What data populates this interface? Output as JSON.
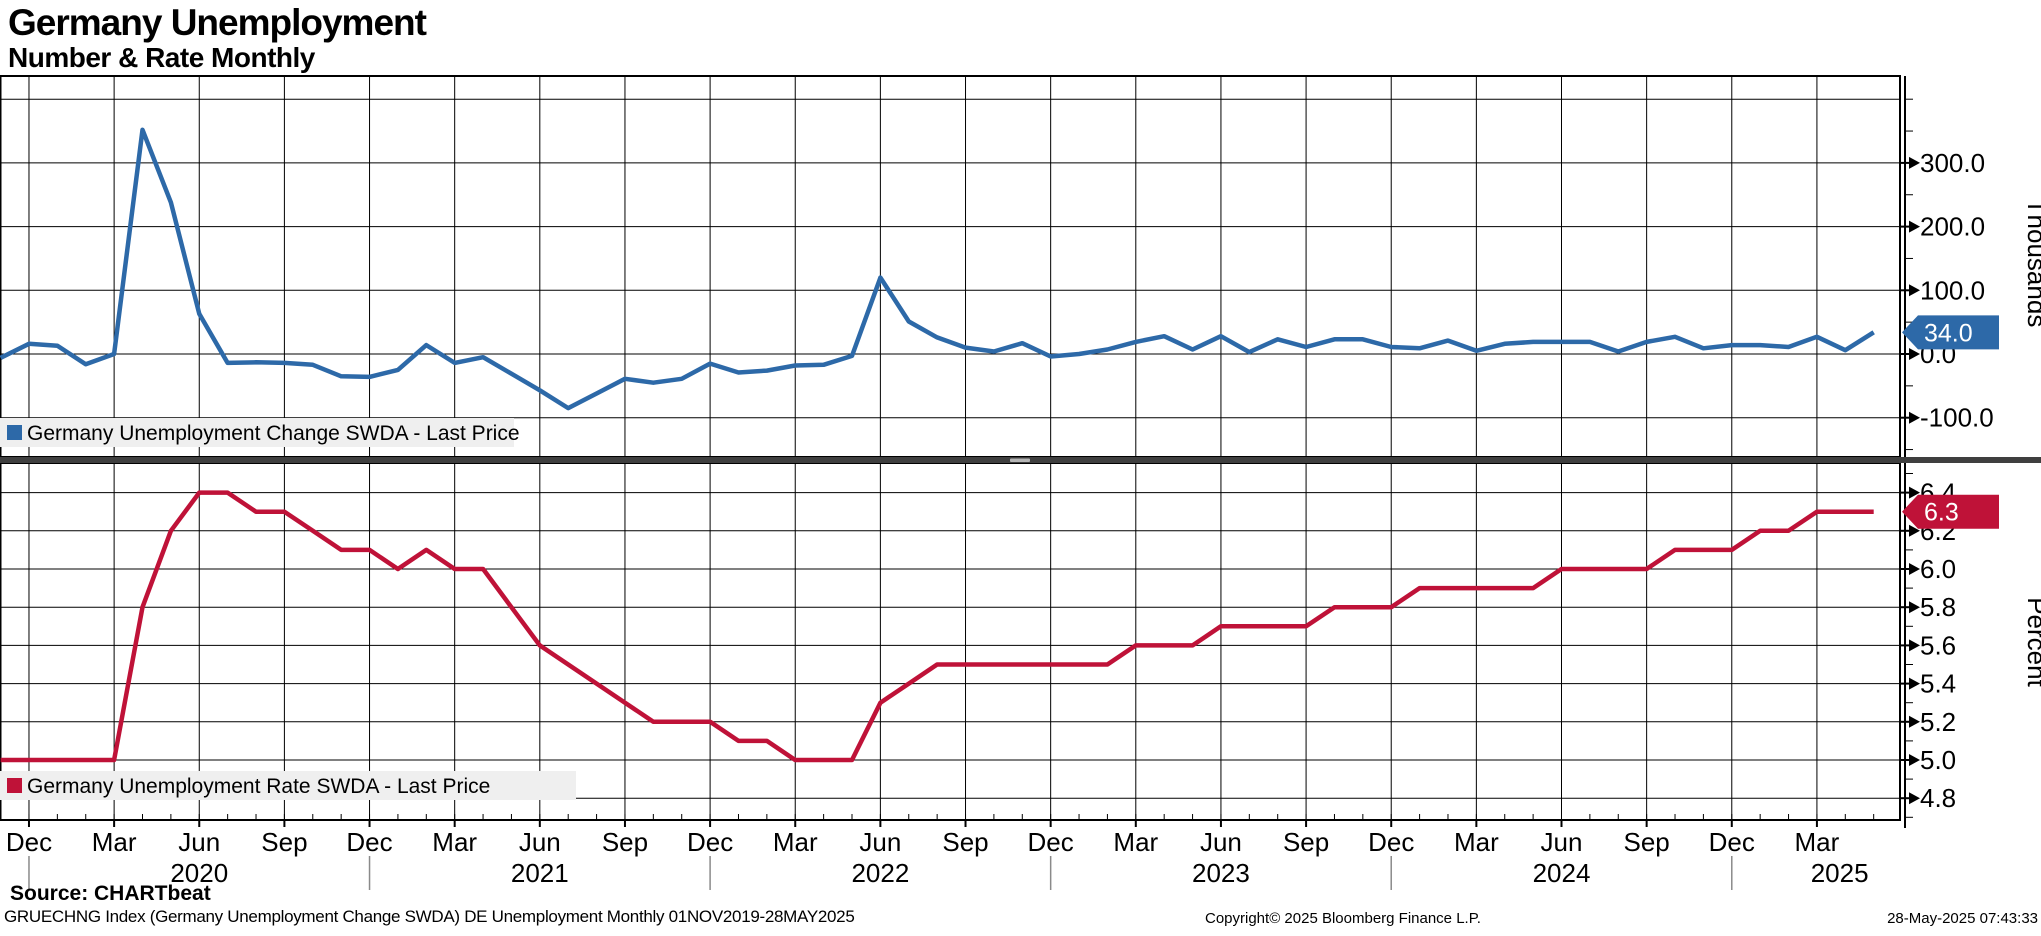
{
  "header": {
    "title": "Germany Unemployment",
    "subtitle": "Number & Rate Monthly"
  },
  "footer": {
    "source": "Source: CHARTbeat",
    "description": "GRUECHNG Index (Germany Unemployment Change SWDA) DE Unemployment  Monthly 01NOV2019-28MAY2025",
    "copyright": "Copyright© 2025 Bloomberg Finance L.P.",
    "timestamp": "28-May-2025 07:43:33"
  },
  "colors": {
    "change_line": "#2d69a8",
    "change_badge": "#2d69a8",
    "rate_line": "#bf1238",
    "rate_badge": "#bf1238",
    "grid": "#000000",
    "legend_bg": "#efefef",
    "divider": "#3f3f3f",
    "divider_handle": "#b5b5b5",
    "year_separator": "#8a8a8a"
  },
  "xaxis": {
    "start": "Nov 2019",
    "end": "May 2025",
    "frequency": "monthly",
    "quarters": [
      {
        "m": 1,
        "label": "Dec"
      },
      {
        "m": 4,
        "label": "Mar"
      },
      {
        "m": 7,
        "label": "Jun"
      },
      {
        "m": 10,
        "label": "Sep"
      },
      {
        "m": 13,
        "label": "Dec"
      },
      {
        "m": 16,
        "label": "Mar"
      },
      {
        "m": 19,
        "label": "Jun"
      },
      {
        "m": 22,
        "label": "Sep"
      },
      {
        "m": 25,
        "label": "Dec"
      },
      {
        "m": 28,
        "label": "Mar"
      },
      {
        "m": 31,
        "label": "Jun"
      },
      {
        "m": 34,
        "label": "Sep"
      },
      {
        "m": 37,
        "label": "Dec"
      },
      {
        "m": 40,
        "label": "Mar"
      },
      {
        "m": 43,
        "label": "Jun"
      },
      {
        "m": 46,
        "label": "Sep"
      },
      {
        "m": 49,
        "label": "Dec"
      },
      {
        "m": 52,
        "label": "Mar"
      },
      {
        "m": 55,
        "label": "Jun"
      },
      {
        "m": 58,
        "label": "Sep"
      },
      {
        "m": 61,
        "label": "Dec"
      },
      {
        "m": 64,
        "label": "Mar"
      }
    ],
    "years": [
      {
        "m": 7,
        "label": "2020"
      },
      {
        "m": 19,
        "label": "2021"
      },
      {
        "m": 31,
        "label": "2022"
      },
      {
        "m": 43,
        "label": "2023"
      },
      {
        "m": 55,
        "label": "2024"
      },
      {
        "m": 64.8,
        "label": "2025"
      }
    ],
    "year_separators_m": [
      1,
      13,
      25,
      37,
      49,
      61
    ]
  },
  "chart_data": [
    {
      "type": "line",
      "panel": "top",
      "legend": "Germany Unemployment Change SWDA - Last Price",
      "ylabel": "Thousands",
      "last_value": 34.0,
      "last_value_label": "34.0",
      "ylim": [
        -162,
        436
      ],
      "yticks_major": [
        300,
        200,
        100,
        0,
        -100
      ],
      "yticks_minor": [
        400,
        350,
        250,
        150,
        50,
        -50,
        -150
      ],
      "gridlines_y": [
        400,
        300,
        200,
        100,
        0,
        -100
      ],
      "x_months": "Nov2019..May2025 (67 monthly points)",
      "values": [
        -6,
        16,
        13,
        -16,
        0,
        352,
        238,
        63,
        -14,
        -13,
        -14,
        -17,
        -35,
        -36,
        -25,
        14,
        -14,
        -5,
        -31,
        -57,
        -85,
        -62,
        -39,
        -45,
        -39,
        -15,
        -29,
        -26,
        -18,
        -17,
        -3,
        120,
        51,
        26,
        10,
        4,
        17,
        -4,
        0,
        7,
        19,
        28,
        7,
        28,
        3,
        23,
        11,
        23,
        23,
        11,
        9,
        21,
        5,
        16,
        19,
        19,
        19,
        4,
        19,
        27,
        9,
        14,
        14,
        11,
        27,
        6,
        34
      ]
    },
    {
      "type": "line",
      "panel": "bottom",
      "legend": "Germany Unemployment Rate SWDA - Last Price",
      "ylabel": "Percent",
      "last_value": 6.3,
      "last_value_label": "6.3",
      "ylim": [
        4.68,
        6.55
      ],
      "yticks_major": [
        6.4,
        6.2,
        6.0,
        5.8,
        5.6,
        5.4,
        5.2,
        5.0,
        4.8
      ],
      "yticks_minor": [
        6.5,
        6.3,
        6.1,
        5.9,
        5.7,
        5.5,
        5.3,
        5.1,
        4.9,
        4.7
      ],
      "gridlines_y": [
        6.4,
        6.2,
        6.0,
        5.8,
        5.6,
        5.4,
        5.2,
        5.0,
        4.8
      ],
      "x_months": "Nov2019..May2025 (67 monthly points)",
      "values": [
        5.0,
        5.0,
        5.0,
        5.0,
        5.0,
        5.8,
        6.2,
        6.4,
        6.4,
        6.3,
        6.3,
        6.2,
        6.1,
        6.1,
        6.0,
        6.1,
        6.0,
        6.0,
        5.8,
        5.6,
        5.5,
        5.4,
        5.3,
        5.2,
        5.2,
        5.2,
        5.1,
        5.1,
        5.0,
        5.0,
        5.0,
        5.3,
        5.4,
        5.5,
        5.5,
        5.5,
        5.5,
        5.5,
        5.5,
        5.5,
        5.6,
        5.6,
        5.6,
        5.7,
        5.7,
        5.7,
        5.7,
        5.8,
        5.8,
        5.8,
        5.9,
        5.9,
        5.9,
        5.9,
        5.9,
        6.0,
        6.0,
        6.0,
        6.0,
        6.1,
        6.1,
        6.1,
        6.2,
        6.2,
        6.3,
        6.3,
        6.3
      ]
    }
  ]
}
